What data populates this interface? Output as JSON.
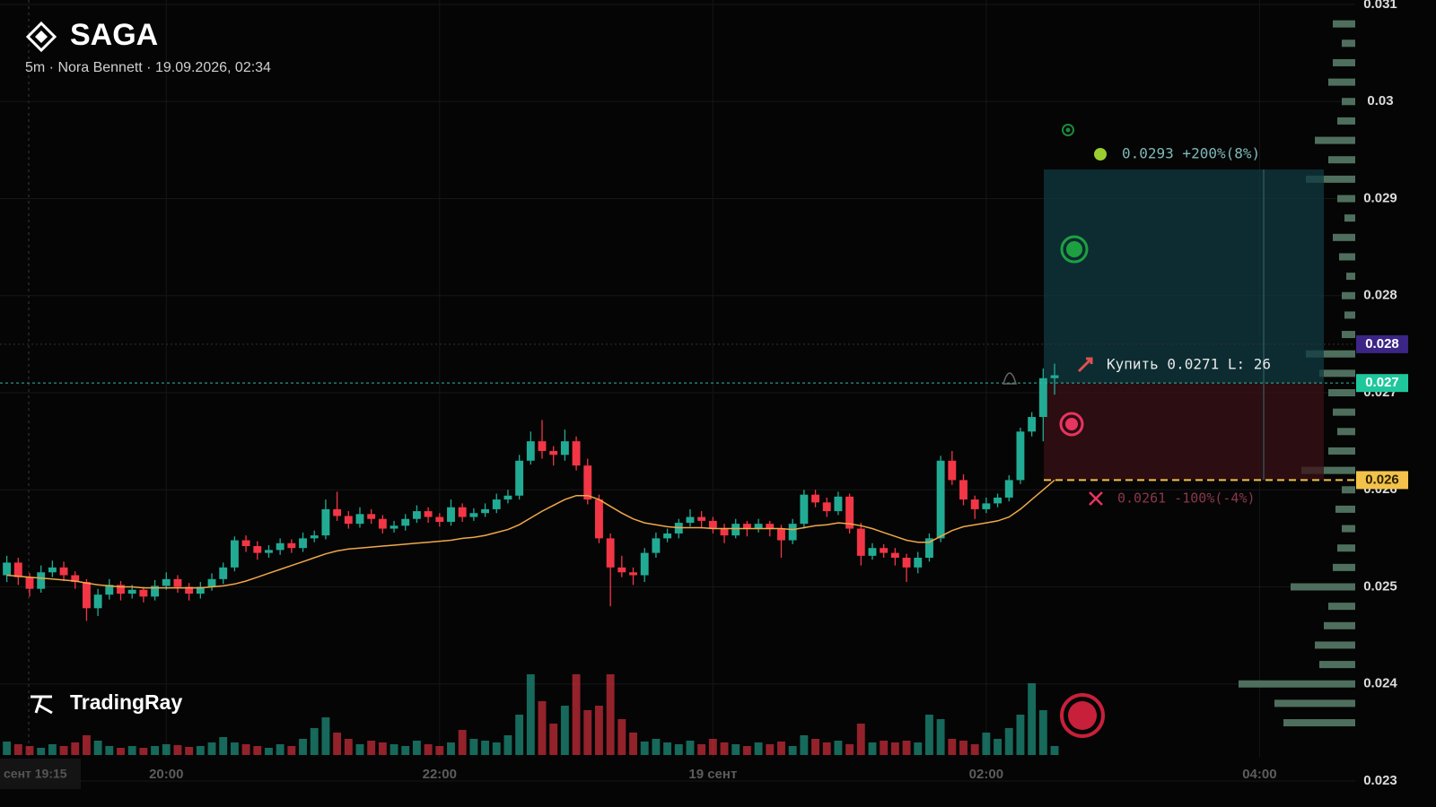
{
  "chart_data": {
    "type": "candlestick",
    "title": "SAGA",
    "subtitle": "5m · Nora Bennett · 19.09.2026, 02:34",
    "watermark": "TradingRay",
    "crosshair_time_label": "сент 19:15",
    "up_color": "#22ab94",
    "down_color": "#f23645",
    "grid": true,
    "xlim": [
      "18:47",
      "04:42"
    ],
    "xticks": [
      {
        "value": "20:00",
        "label": "20:00"
      },
      {
        "value": "22:00",
        "label": "22:00"
      },
      {
        "value": "00:00",
        "label": "19 сент"
      },
      {
        "value": "02:00",
        "label": "02:00"
      },
      {
        "value": "04:00",
        "label": "04:00"
      }
    ],
    "ylim": [
      0.023,
      0.031
    ],
    "yticks": [
      0.023,
      0.024,
      0.025,
      0.026,
      0.027,
      0.028,
      0.029,
      0.03,
      0.031
    ],
    "x": [
      "18:50",
      "18:55",
      "19:00",
      "19:05",
      "19:10",
      "19:15",
      "19:20",
      "19:25",
      "19:30",
      "19:35",
      "19:40",
      "19:45",
      "19:50",
      "19:55",
      "20:00",
      "20:05",
      "20:10",
      "20:15",
      "20:20",
      "20:25",
      "20:30",
      "20:35",
      "20:40",
      "20:45",
      "20:50",
      "20:55",
      "21:00",
      "21:05",
      "21:10",
      "21:15",
      "21:20",
      "21:25",
      "21:30",
      "21:35",
      "21:40",
      "21:45",
      "21:50",
      "21:55",
      "22:00",
      "22:05",
      "22:10",
      "22:15",
      "22:20",
      "22:25",
      "22:30",
      "22:35",
      "22:40",
      "22:45",
      "22:50",
      "22:55",
      "23:00",
      "23:05",
      "23:10",
      "23:15",
      "23:20",
      "23:25",
      "23:30",
      "23:35",
      "23:40",
      "23:45",
      "23:50",
      "23:55",
      "00:00",
      "00:05",
      "00:10",
      "00:15",
      "00:20",
      "00:25",
      "00:30",
      "00:35",
      "00:40",
      "00:45",
      "00:50",
      "00:55",
      "01:00",
      "01:05",
      "01:10",
      "01:15",
      "01:20",
      "01:25",
      "01:30",
      "01:35",
      "01:40",
      "01:45",
      "01:50",
      "01:55",
      "02:00",
      "02:05",
      "02:10",
      "02:15",
      "02:20",
      "02:25",
      "02:30"
    ],
    "ohlc": [
      [
        0.02512,
        0.02532,
        0.02505,
        0.02525
      ],
      [
        0.02525,
        0.0253,
        0.02502,
        0.0251
      ],
      [
        0.0251,
        0.02514,
        0.0249,
        0.02498
      ],
      [
        0.02498,
        0.02522,
        0.02494,
        0.02515
      ],
      [
        0.02515,
        0.02527,
        0.0251,
        0.0252
      ],
      [
        0.0252,
        0.02526,
        0.02506,
        0.02512
      ],
      [
        0.02512,
        0.02516,
        0.02498,
        0.02505
      ],
      [
        0.02505,
        0.02508,
        0.02465,
        0.02478
      ],
      [
        0.02478,
        0.02498,
        0.0247,
        0.02492
      ],
      [
        0.02492,
        0.02508,
        0.02487,
        0.02502
      ],
      [
        0.02502,
        0.02506,
        0.02486,
        0.02493
      ],
      [
        0.02493,
        0.02502,
        0.02488,
        0.02497
      ],
      [
        0.02497,
        0.025,
        0.02484,
        0.0249
      ],
      [
        0.0249,
        0.02507,
        0.02486,
        0.02501
      ],
      [
        0.02501,
        0.02515,
        0.02497,
        0.02508
      ],
      [
        0.02508,
        0.02512,
        0.02494,
        0.025
      ],
      [
        0.025,
        0.02504,
        0.02486,
        0.02493
      ],
      [
        0.02493,
        0.02505,
        0.02488,
        0.025
      ],
      [
        0.025,
        0.02514,
        0.02496,
        0.02508
      ],
      [
        0.02508,
        0.02525,
        0.02503,
        0.0252
      ],
      [
        0.0252,
        0.02552,
        0.02516,
        0.02548
      ],
      [
        0.02548,
        0.02553,
        0.02536,
        0.02542
      ],
      [
        0.02542,
        0.02547,
        0.02528,
        0.02535
      ],
      [
        0.02535,
        0.02543,
        0.0253,
        0.02538
      ],
      [
        0.02538,
        0.0255,
        0.02533,
        0.02545
      ],
      [
        0.02545,
        0.02549,
        0.02535,
        0.0254
      ],
      [
        0.0254,
        0.02556,
        0.02536,
        0.0255
      ],
      [
        0.0255,
        0.02558,
        0.02546,
        0.02553
      ],
      [
        0.02553,
        0.0259,
        0.02549,
        0.0258
      ],
      [
        0.0258,
        0.02598,
        0.02568,
        0.02573
      ],
      [
        0.02573,
        0.02578,
        0.0256,
        0.02565
      ],
      [
        0.02565,
        0.02582,
        0.02561,
        0.02575
      ],
      [
        0.02575,
        0.0258,
        0.02565,
        0.0257
      ],
      [
        0.0257,
        0.02574,
        0.02555,
        0.0256
      ],
      [
        0.0256,
        0.02568,
        0.02556,
        0.02563
      ],
      [
        0.02563,
        0.02575,
        0.02558,
        0.0257
      ],
      [
        0.0257,
        0.02584,
        0.02566,
        0.02578
      ],
      [
        0.02578,
        0.02582,
        0.02566,
        0.02572
      ],
      [
        0.02572,
        0.02576,
        0.02562,
        0.02567
      ],
      [
        0.02567,
        0.0259,
        0.02563,
        0.02582
      ],
      [
        0.02582,
        0.02586,
        0.02567,
        0.02572
      ],
      [
        0.02572,
        0.02581,
        0.02568,
        0.02576
      ],
      [
        0.02576,
        0.02586,
        0.02572,
        0.0258
      ],
      [
        0.0258,
        0.02596,
        0.02576,
        0.0259
      ],
      [
        0.0259,
        0.026,
        0.02586,
        0.02594
      ],
      [
        0.02594,
        0.02636,
        0.0259,
        0.0263
      ],
      [
        0.0263,
        0.0266,
        0.02626,
        0.0265
      ],
      [
        0.0265,
        0.02672,
        0.02632,
        0.0264
      ],
      [
        0.0264,
        0.02645,
        0.02625,
        0.02636
      ],
      [
        0.02636,
        0.02662,
        0.0263,
        0.0265
      ],
      [
        0.0265,
        0.02655,
        0.0262,
        0.02625
      ],
      [
        0.02625,
        0.02632,
        0.02585,
        0.0259
      ],
      [
        0.0259,
        0.02595,
        0.02545,
        0.0255
      ],
      [
        0.0255,
        0.02555,
        0.0248,
        0.0252
      ],
      [
        0.0252,
        0.02532,
        0.0251,
        0.02515
      ],
      [
        0.02515,
        0.0252,
        0.02502,
        0.02512
      ],
      [
        0.02512,
        0.0254,
        0.02505,
        0.02535
      ],
      [
        0.02535,
        0.02556,
        0.0253,
        0.0255
      ],
      [
        0.0255,
        0.0256,
        0.02546,
        0.02555
      ],
      [
        0.02555,
        0.0257,
        0.0255,
        0.02566
      ],
      [
        0.02566,
        0.0258,
        0.02562,
        0.02572
      ],
      [
        0.02572,
        0.02578,
        0.0256,
        0.02568
      ],
      [
        0.02568,
        0.02572,
        0.02555,
        0.0256
      ],
      [
        0.0256,
        0.02565,
        0.02545,
        0.02553
      ],
      [
        0.02553,
        0.0257,
        0.0255,
        0.02565
      ],
      [
        0.02565,
        0.02568,
        0.02552,
        0.0256
      ],
      [
        0.0256,
        0.0257,
        0.02556,
        0.02565
      ],
      [
        0.02565,
        0.02568,
        0.02552,
        0.0256
      ],
      [
        0.0256,
        0.02564,
        0.0253,
        0.02548
      ],
      [
        0.02548,
        0.0257,
        0.02544,
        0.02565
      ],
      [
        0.02565,
        0.026,
        0.0256,
        0.02595
      ],
      [
        0.02595,
        0.026,
        0.02582,
        0.02587
      ],
      [
        0.02587,
        0.02592,
        0.02572,
        0.02578
      ],
      [
        0.02578,
        0.02598,
        0.02574,
        0.02593
      ],
      [
        0.02593,
        0.02596,
        0.02555,
        0.0256
      ],
      [
        0.0256,
        0.02566,
        0.02522,
        0.02532
      ],
      [
        0.02532,
        0.02545,
        0.02528,
        0.0254
      ],
      [
        0.0254,
        0.02544,
        0.0253,
        0.02535
      ],
      [
        0.02535,
        0.0254,
        0.02522,
        0.0253
      ],
      [
        0.0253,
        0.02534,
        0.02505,
        0.0252
      ],
      [
        0.0252,
        0.02536,
        0.02514,
        0.0253
      ],
      [
        0.0253,
        0.02555,
        0.02526,
        0.0255
      ],
      [
        0.0255,
        0.02635,
        0.02546,
        0.0263
      ],
      [
        0.0263,
        0.0264,
        0.02605,
        0.0261
      ],
      [
        0.0261,
        0.02616,
        0.02584,
        0.0259
      ],
      [
        0.0259,
        0.02594,
        0.0257,
        0.0258
      ],
      [
        0.0258,
        0.02592,
        0.02576,
        0.02586
      ],
      [
        0.02586,
        0.02596,
        0.02582,
        0.02592
      ],
      [
        0.02592,
        0.02615,
        0.02588,
        0.0261
      ],
      [
        0.0261,
        0.02664,
        0.02606,
        0.0266
      ],
      [
        0.0266,
        0.0268,
        0.02655,
        0.02675
      ],
      [
        0.02675,
        0.02725,
        0.0265,
        0.02715
      ],
      [
        0.02715,
        0.0273,
        0.02698,
        0.02718
      ]
    ],
    "volume": [
      15,
      12,
      10,
      8,
      12,
      10,
      14,
      22,
      16,
      10,
      8,
      10,
      8,
      10,
      12,
      11,
      9,
      10,
      14,
      20,
      14,
      12,
      10,
      8,
      12,
      10,
      18,
      30,
      42,
      25,
      18,
      12,
      16,
      14,
      12,
      10,
      16,
      12,
      10,
      14,
      28,
      18,
      16,
      14,
      22,
      45,
      90,
      60,
      35,
      55,
      90,
      50,
      55,
      90,
      40,
      25,
      15,
      18,
      14,
      12,
      16,
      12,
      18,
      14,
      12,
      10,
      14,
      12,
      15,
      10,
      22,
      18,
      14,
      16,
      12,
      35,
      14,
      16,
      14,
      16,
      14,
      45,
      40,
      18,
      16,
      12,
      25,
      18,
      30,
      45,
      80,
      50,
      10
    ],
    "volume_ylim": [
      0,
      100
    ],
    "ema": {
      "color": "#f0a848",
      "values": [
        0.02512,
        0.02511,
        0.0251,
        0.02509,
        0.02508,
        0.02507,
        0.02506,
        0.02504,
        0.02502,
        0.02501,
        0.025,
        0.025,
        0.02499,
        0.02499,
        0.02499,
        0.02499,
        0.02499,
        0.02499,
        0.025,
        0.02501,
        0.02503,
        0.02506,
        0.0251,
        0.02514,
        0.02518,
        0.02522,
        0.02526,
        0.0253,
        0.02534,
        0.02537,
        0.02539,
        0.0254,
        0.02541,
        0.02542,
        0.02543,
        0.02544,
        0.02545,
        0.02546,
        0.02547,
        0.02548,
        0.0255,
        0.02551,
        0.02553,
        0.02556,
        0.02559,
        0.02564,
        0.02571,
        0.02578,
        0.02584,
        0.0259,
        0.02594,
        0.02594,
        0.0259,
        0.02583,
        0.02576,
        0.0257,
        0.02566,
        0.02564,
        0.02562,
        0.02561,
        0.02561,
        0.02561,
        0.0256,
        0.0256,
        0.0256,
        0.0256,
        0.0256,
        0.0256,
        0.0256,
        0.02559,
        0.02561,
        0.02563,
        0.02564,
        0.02566,
        0.02565,
        0.02563,
        0.0256,
        0.02556,
        0.02552,
        0.02548,
        0.02546,
        0.02546,
        0.02552,
        0.02558,
        0.02562,
        0.02564,
        0.02566,
        0.02568,
        0.02572,
        0.0258,
        0.0259,
        0.026,
        0.0261
      ]
    },
    "volume_profile": {
      "color": "#4f6f5e",
      "prices": [
        0.0236,
        0.0238,
        0.024,
        0.0242,
        0.0244,
        0.0246,
        0.0248,
        0.025,
        0.0252,
        0.0254,
        0.0256,
        0.0258,
        0.026,
        0.0262,
        0.0264,
        0.0266,
        0.0268,
        0.027,
        0.0272,
        0.0274,
        0.0276,
        0.0278,
        0.028,
        0.0282,
        0.0284,
        0.0286,
        0.0288,
        0.029,
        0.0292,
        0.0294,
        0.0296,
        0.0298,
        0.03,
        0.0302,
        0.0304,
        0.0306,
        0.0308
      ],
      "values": [
        80,
        90,
        130,
        40,
        45,
        35,
        30,
        72,
        25,
        20,
        15,
        22,
        15,
        60,
        30,
        20,
        25,
        30,
        40,
        55,
        15,
        12,
        15,
        10,
        18,
        25,
        12,
        20,
        55,
        30,
        45,
        20,
        15,
        30,
        25,
        15,
        25
      ]
    },
    "trade": {
      "take_profit": 0.0293,
      "take_profit_label": "0.0293 +200%(8%)",
      "entry": 0.0271,
      "entry_label": "Купить 0.0271 L: 26",
      "stop_loss": 0.0261,
      "stop_loss_label": "0.0261 -100%(-4%)"
    },
    "price_labels": [
      {
        "value": 0.0275,
        "label": "0.028",
        "color": "#3b2585"
      },
      {
        "value": 0.0271,
        "label": "0.027",
        "color": "#1fc79c"
      },
      {
        "value": 0.0261,
        "label": "0.026",
        "color": "#f3c24a"
      }
    ]
  }
}
